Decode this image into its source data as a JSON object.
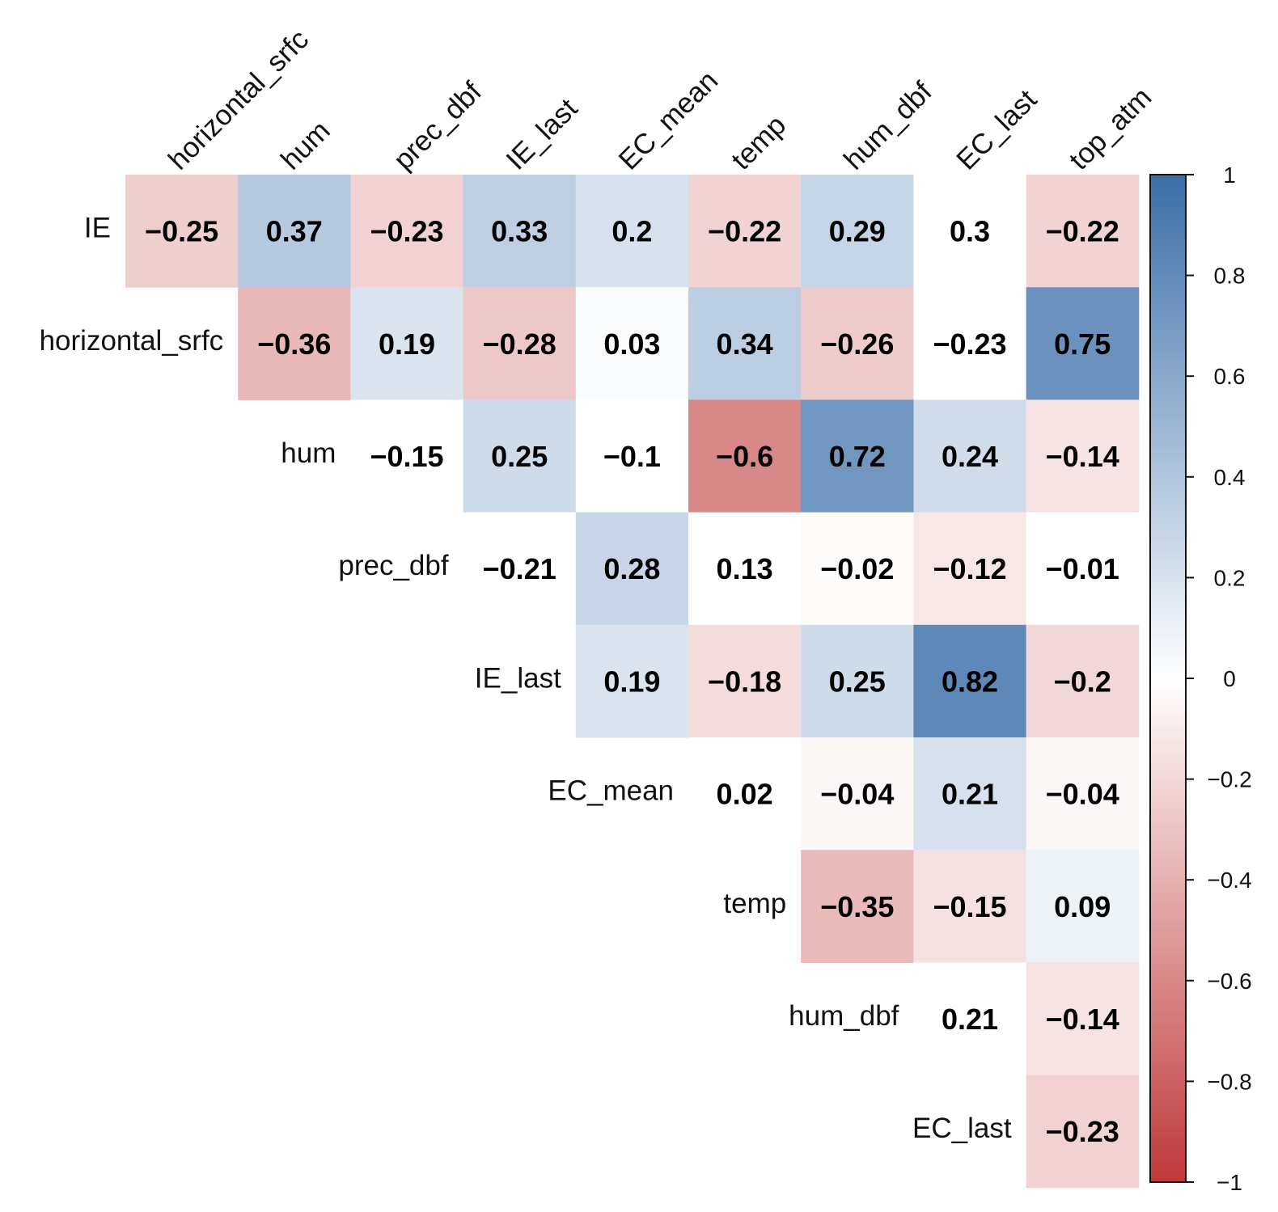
{
  "chart_data": {
    "type": "heatmap",
    "title": "",
    "columns": [
      "horizontal_srfc",
      "hum",
      "prec_dbf",
      "IE_last",
      "EC_mean",
      "temp",
      "hum_dbf",
      "EC_last",
      "top_atm"
    ],
    "rows": [
      "IE",
      "horizontal_srfc",
      "hum",
      "prec_dbf",
      "IE_last",
      "EC_mean",
      "temp",
      "hum_dbf",
      "EC_last"
    ],
    "values": [
      [
        -0.25,
        0.37,
        -0.23,
        0.33,
        0.2,
        -0.22,
        0.29,
        0.3,
        -0.22
      ],
      [
        null,
        -0.36,
        0.19,
        -0.28,
        0.03,
        0.34,
        -0.26,
        -0.23,
        0.75
      ],
      [
        null,
        null,
        -0.15,
        0.25,
        -0.1,
        -0.6,
        0.72,
        0.24,
        -0.14
      ],
      [
        null,
        null,
        null,
        -0.21,
        0.28,
        0.13,
        -0.02,
        -0.12,
        -0.01
      ],
      [
        null,
        null,
        null,
        null,
        0.19,
        -0.18,
        0.25,
        0.82,
        -0.2
      ],
      [
        null,
        null,
        null,
        null,
        null,
        0.02,
        -0.04,
        0.21,
        -0.04
      ],
      [
        null,
        null,
        null,
        null,
        null,
        null,
        -0.35,
        -0.15,
        0.09
      ],
      [
        null,
        null,
        null,
        null,
        null,
        null,
        null,
        0.21,
        -0.14
      ],
      [
        null,
        null,
        null,
        null,
        null,
        null,
        null,
        null,
        -0.23
      ]
    ],
    "labels": [
      [
        "−0.25",
        "0.37",
        "−0.23",
        "0.33",
        "0.2",
        "−0.22",
        "0.29",
        "0.3",
        "−0.22"
      ],
      [
        null,
        "−0.36",
        "0.19",
        "−0.28",
        "0.03",
        "0.34",
        "−0.26",
        "−0.23",
        "0.75"
      ],
      [
        null,
        null,
        "−0.15",
        "0.25",
        "−0.1",
        "−0.6",
        "0.72",
        "0.24",
        "−0.14"
      ],
      [
        null,
        null,
        null,
        "−0.21",
        "0.28",
        "0.13",
        "−0.02",
        "−0.12",
        "−0.01"
      ],
      [
        null,
        null,
        null,
        null,
        "0.19",
        "−0.18",
        "0.25",
        "0.82",
        "−0.2"
      ],
      [
        null,
        null,
        null,
        null,
        null,
        "0.02",
        "−0.04",
        "0.21",
        "−0.04"
      ],
      [
        null,
        null,
        null,
        null,
        null,
        null,
        "−0.35",
        "−0.15",
        "0.09"
      ],
      [
        null,
        null,
        null,
        null,
        null,
        null,
        null,
        "0.21",
        "−0.14"
      ],
      [
        null,
        null,
        null,
        null,
        null,
        null,
        null,
        null,
        "−0.23"
      ]
    ],
    "colorbar": {
      "range": [
        -1,
        1
      ],
      "ticks": [
        1,
        0.8,
        0.6,
        0.4,
        0.2,
        0,
        -0.2,
        -0.4,
        -0.6,
        -0.8,
        -1
      ],
      "tick_labels": [
        "1",
        "0.8",
        "0.6",
        "0.4",
        "0.2",
        "0",
        "−0.2",
        "−0.4",
        "−0.6",
        "−0.8",
        "−1"
      ],
      "colors": {
        "negative_end": "#c0393b",
        "zero": "#ffffff",
        "positive_end": "#3a6ea8"
      }
    },
    "insignificant_white": {
      "note": "Cells with non-significant correlations are drawn white",
      "cells": [
        [
          0,
          7
        ],
        [
          1,
          7
        ],
        [
          2,
          2
        ],
        [
          2,
          4
        ],
        [
          3,
          3
        ],
        [
          3,
          5
        ],
        [
          3,
          8
        ],
        [
          5,
          5
        ],
        [
          7,
          7
        ]
      ]
    }
  }
}
